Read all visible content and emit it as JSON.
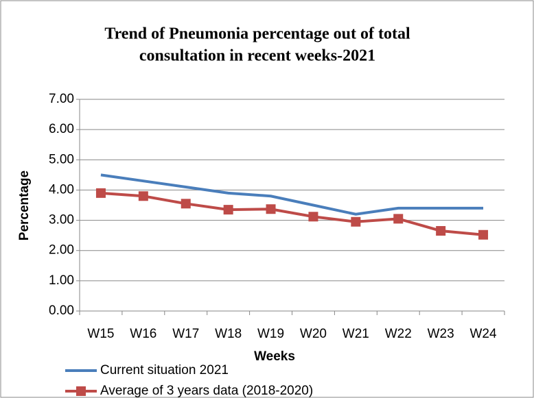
{
  "chart_data": {
    "type": "line",
    "title": [
      "Trend of Pneumonia percentage out of total",
      "consultation in recent weeks-2021"
    ],
    "x_label": "Weeks",
    "y_label": "Percentage",
    "categories": [
      "W15",
      "W16",
      "W17",
      "W18",
      "W19",
      "W20",
      "W21",
      "W22",
      "W23",
      "W24"
    ],
    "series": [
      {
        "name": "Current situation 2021",
        "color": "#4a7ebb",
        "marker": "none",
        "values": [
          4.5,
          4.3,
          4.1,
          3.9,
          3.8,
          3.5,
          3.2,
          3.4,
          3.4,
          3.4
        ]
      },
      {
        "name": "Average of 3 years data (2018-2020)",
        "color": "#be4b48",
        "marker": "square",
        "values": [
          3.9,
          3.8,
          3.55,
          3.35,
          3.37,
          3.12,
          2.95,
          3.05,
          2.65,
          2.52
        ]
      }
    ],
    "ylim": [
      0,
      7
    ],
    "yticks": [
      {
        "value": 0,
        "label": "0.00"
      },
      {
        "value": 1,
        "label": "1.00"
      },
      {
        "value": 2,
        "label": "2.00"
      },
      {
        "value": 3,
        "label": "3.00"
      },
      {
        "value": 4,
        "label": "4.00"
      },
      {
        "value": 5,
        "label": "5.00"
      },
      {
        "value": 6,
        "label": "6.00"
      },
      {
        "value": 7,
        "label": "7.00"
      }
    ],
    "grid": true,
    "legend": "bottom"
  }
}
